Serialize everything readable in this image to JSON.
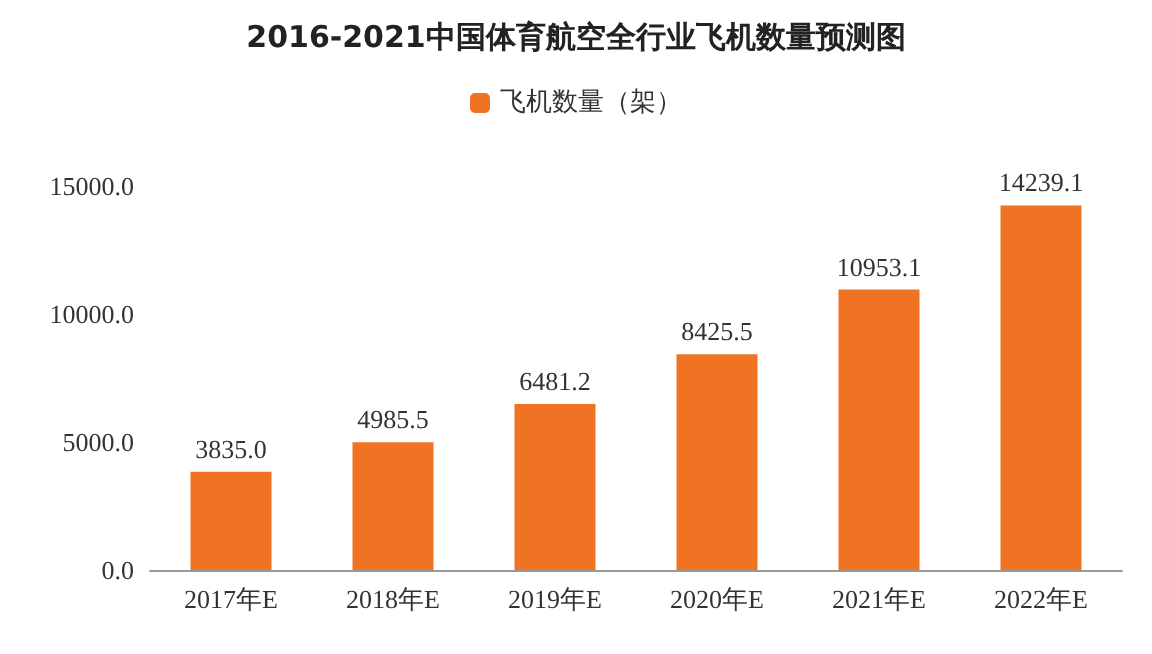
{
  "chart_data": {
    "type": "bar",
    "title": "2016-2021中国体育航空全行业飞机数量预测图",
    "categories": [
      "2017年E",
      "2018年E",
      "2019年E",
      "2020年E",
      "2021年E",
      "2022年E"
    ],
    "series": [
      {
        "name": "飞机数量（架）",
        "color": "#f07323",
        "values": [
          3835.0,
          4985.5,
          6481.2,
          8425.5,
          10953.1,
          14239.1
        ],
        "value_labels": [
          "3835.0",
          "4985.5",
          "6481.2",
          "8425.5",
          "10953.1",
          "14239.1"
        ]
      }
    ],
    "ylim": [
      0,
      15000
    ],
    "yticks": [
      {
        "value": 0,
        "label": "0.0"
      },
      {
        "value": 5000,
        "label": "5000.0"
      },
      {
        "value": 10000,
        "label": "10000.0"
      },
      {
        "value": 15000,
        "label": "15000.0"
      }
    ],
    "grid": false,
    "legend": "top"
  }
}
